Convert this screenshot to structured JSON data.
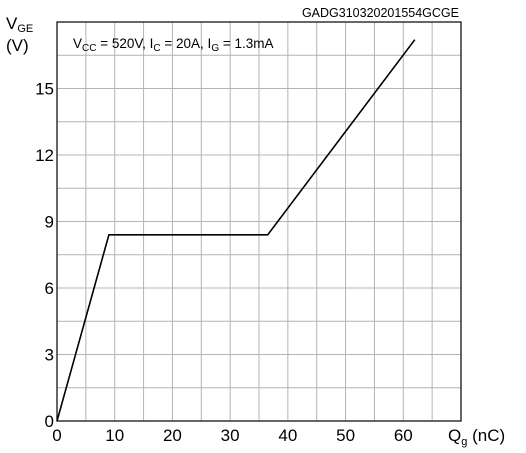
{
  "chart_data": {
    "type": "line",
    "watermark": "GADG310320201554GCGE",
    "condition": {
      "vcc_label": "V",
      "vcc_sub": "CC",
      "vcc_value": " = 520V, I",
      "ic_sub": "C",
      "ic_value": " = 20A, I",
      "ig_sub": "G",
      "ig_value": " = 1.3mA"
    },
    "ylabel": {
      "main": "V",
      "sub": "GE",
      "unit": "(V)"
    },
    "xlabel": {
      "main": "Q",
      "sub": "g",
      "unit": " (nC)"
    },
    "xlim": [
      0,
      70
    ],
    "ylim": [
      0,
      18
    ],
    "x_ticks": [
      0,
      10,
      20,
      30,
      40,
      50,
      60
    ],
    "y_ticks": [
      0,
      3,
      6,
      9,
      12,
      15
    ],
    "x_minor_step": 5,
    "y_minor_step": 1.5,
    "grid": true,
    "series": [
      {
        "x": [
          0,
          9,
          36.5,
          62
        ],
        "y": [
          0,
          8.4,
          8.4,
          17.2
        ]
      }
    ]
  }
}
